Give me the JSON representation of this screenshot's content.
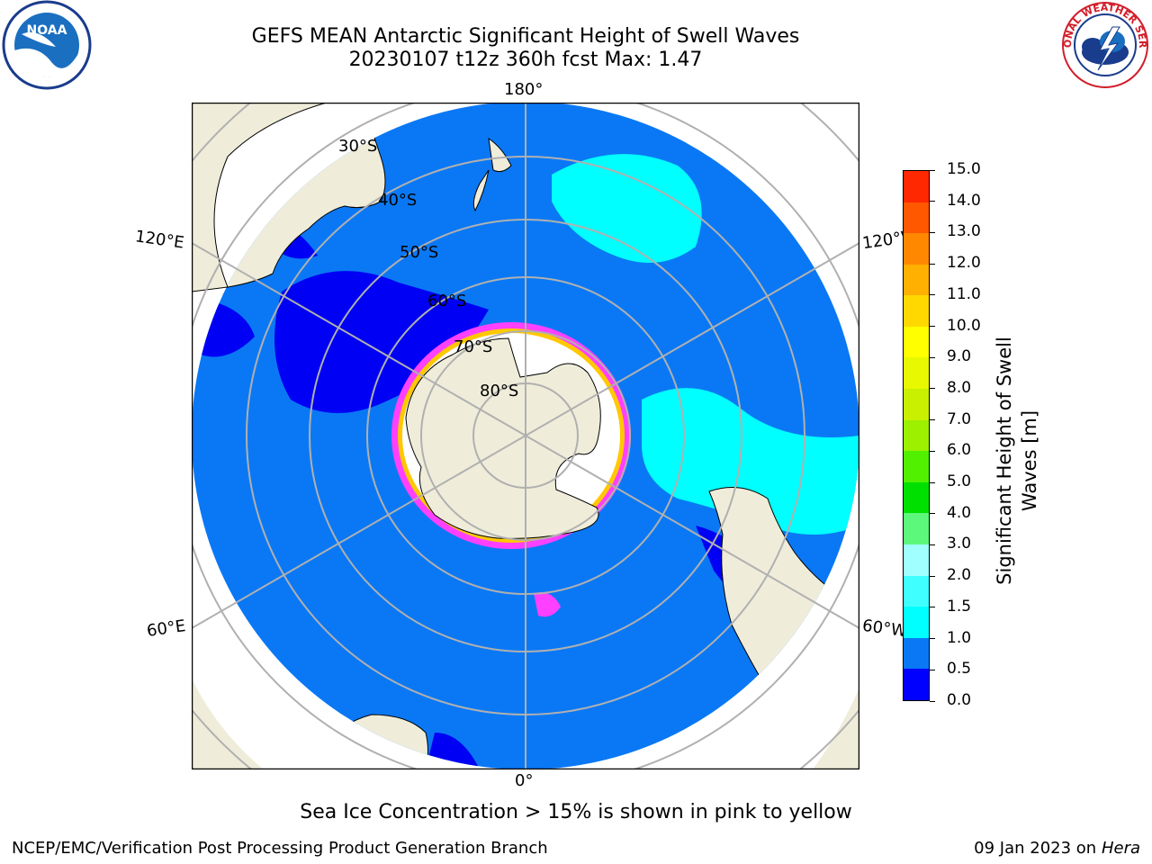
{
  "title": {
    "line1": "GEFS MEAN Antarctic Significant Height of Swell Waves",
    "line2": "20230107 t12z 360h fcst   Max: 1.47"
  },
  "logos": {
    "left": "NOAA",
    "left_ring": "NATIONAL OCEANIC AND ATMOSPHERIC ADMINISTRATION · U.S. DEPARTMENT OF COMMERCE",
    "right": "NATIONAL WEATHER SERVICE"
  },
  "map": {
    "projection": "south-polar-stereographic",
    "lon_labels": {
      "top": "180°",
      "bottom": "0°",
      "upper_left": "120°E",
      "lower_left": "60°E",
      "upper_right": "120°W",
      "lower_right": "60°W"
    },
    "lat_labels": [
      "30°S",
      "40°S",
      "50°S",
      "60°S",
      "70°S",
      "80°S"
    ],
    "colors": {
      "land": "#efedda",
      "ocean_low": "#0a78f5",
      "ocean_lowest": "#0000f5",
      "swell_mid": "#00ffff",
      "ice_edge": "#ff40ff",
      "grid": "#b0b0b0"
    }
  },
  "colorbar": {
    "title": "Significant Height of Swell Waves [m]",
    "ticks": [
      "0.0",
      "0.5",
      "1.0",
      "1.5",
      "2.0",
      "3.0",
      "4.0",
      "5.0",
      "6.0",
      "7.0",
      "8.0",
      "9.0",
      "10.0",
      "11.0",
      "12.0",
      "13.0",
      "14.0",
      "15.0"
    ],
    "colors": [
      "#0000ff",
      "#0a78f5",
      "#00ffff",
      "#40ffff",
      "#a0ffff",
      "#5cf87c",
      "#00e000",
      "#50f000",
      "#9cf000",
      "#c8f000",
      "#e8f800",
      "#ffff00",
      "#ffd800",
      "#ffb000",
      "#ff8800",
      "#ff5800",
      "#ff2800",
      "#ff0000"
    ]
  },
  "caption": "Sea Ice Concentration > 15% is shown in pink to yellow",
  "footer": {
    "left": "NCEP/EMC/Verification Post Processing Product Generation Branch",
    "right_date": "09 Jan 2023 on ",
    "right_host": "Hera"
  }
}
